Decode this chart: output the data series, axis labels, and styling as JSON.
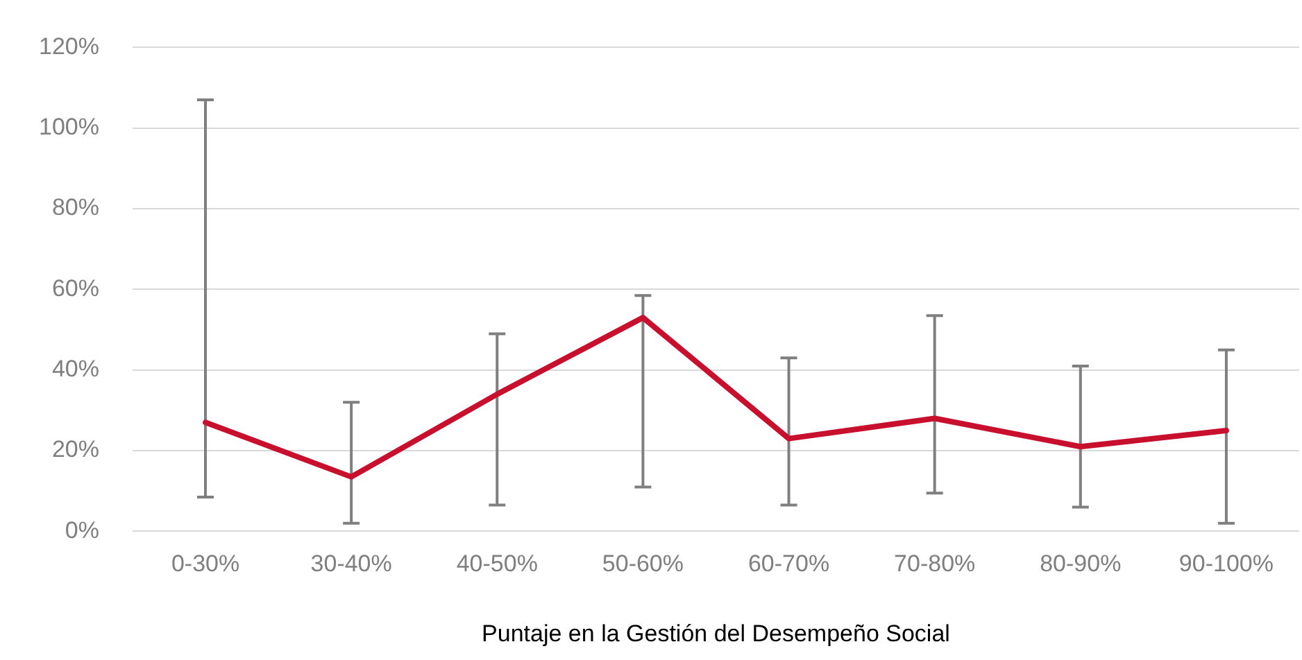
{
  "chart_data": {
    "type": "line",
    "xlabel": "Puntaje en la Gestión del Desempeño Social",
    "categories": [
      "0-30%",
      "30-40%",
      "40-50%",
      "50-60%",
      "60-70%",
      "70-80%",
      "80-90%",
      "90-100%"
    ],
    "series": [
      {
        "color": "#c8102e",
        "values": [
          27,
          13.5,
          34,
          53,
          23,
          28,
          21,
          25
        ],
        "errors": [
          [
            8.5,
            107
          ],
          [
            2,
            32
          ],
          [
            6.5,
            49
          ],
          [
            11,
            58.5
          ],
          [
            6.5,
            43
          ],
          [
            9.5,
            53.5
          ],
          [
            6,
            41
          ],
          [
            2,
            45
          ]
        ]
      }
    ],
    "ylim": [
      0,
      120
    ],
    "yticks": [
      {
        "value": 0,
        "label": "0%"
      },
      {
        "value": 20,
        "label": "20%"
      },
      {
        "value": 40,
        "label": "40%"
      },
      {
        "value": 60,
        "label": "60%"
      },
      {
        "value": 80,
        "label": "80%"
      },
      {
        "value": 100,
        "label": "100%"
      },
      {
        "value": 120,
        "label": "120%"
      }
    ],
    "grid": "y",
    "legend": false,
    "marker": "none",
    "line_style": "solid"
  }
}
